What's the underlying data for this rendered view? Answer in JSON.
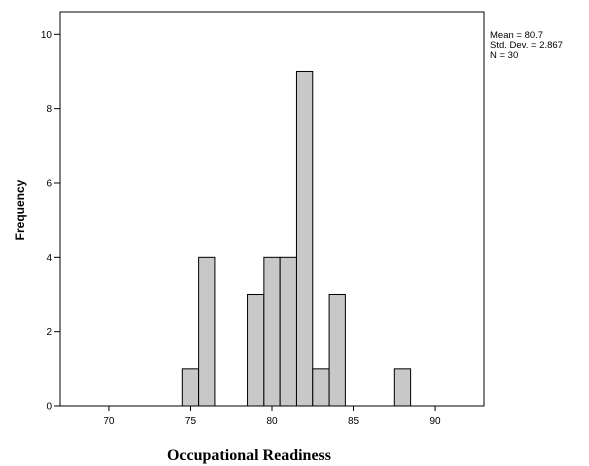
{
  "chart_data": {
    "type": "bar",
    "title": "",
    "xlabel": "Occupational Readiness",
    "ylabel": "Frequency",
    "xlim": [
      67,
      93
    ],
    "ylim": [
      0,
      10.6
    ],
    "x_ticks": [
      70,
      75,
      80,
      85,
      90
    ],
    "y_ticks": [
      0,
      2,
      4,
      6,
      8,
      10
    ],
    "bin_width": 1,
    "bins": [
      {
        "start": 74.5,
        "end": 75.5,
        "count": 1
      },
      {
        "start": 75.5,
        "end": 76.5,
        "count": 4
      },
      {
        "start": 78.5,
        "end": 79.5,
        "count": 3
      },
      {
        "start": 79.5,
        "end": 80.5,
        "count": 4
      },
      {
        "start": 80.5,
        "end": 81.5,
        "count": 4
      },
      {
        "start": 81.5,
        "end": 82.5,
        "count": 9
      },
      {
        "start": 82.5,
        "end": 83.5,
        "count": 1
      },
      {
        "start": 83.5,
        "end": 84.5,
        "count": 3
      },
      {
        "start": 87.5,
        "end": 88.5,
        "count": 1
      }
    ],
    "stats": [
      "Mean = 80.7",
      "Std. Dev. = 2.867",
      "N = 30"
    ],
    "colors": {
      "bar_fill": "#c8c8c8",
      "bar_stroke": "#000000"
    }
  }
}
